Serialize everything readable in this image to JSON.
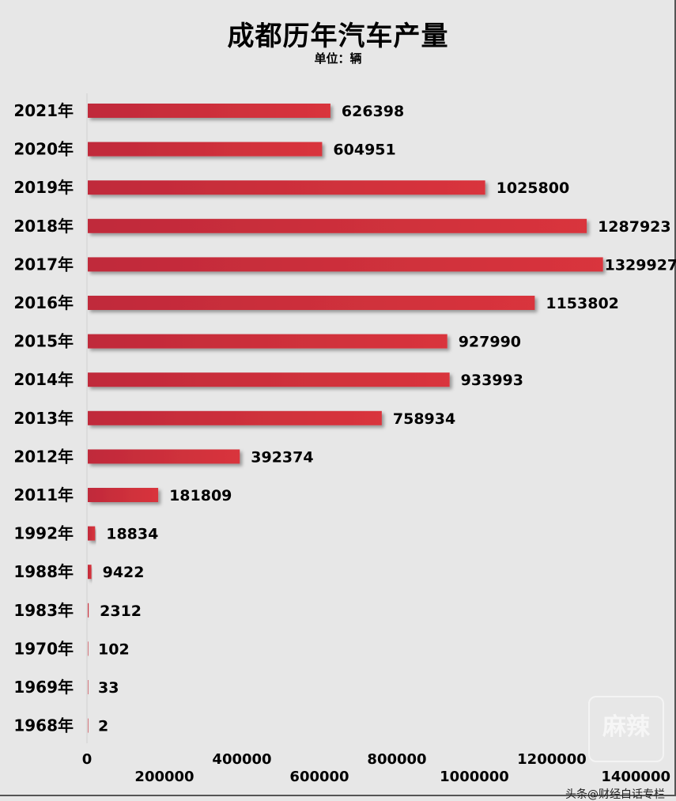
{
  "chart_data": {
    "type": "bar",
    "orientation": "horizontal",
    "title": "成都历年汽车产量",
    "subtitle": "单位：辆",
    "categories": [
      "2021年",
      "2020年",
      "2019年",
      "2018年",
      "2017年",
      "2016年",
      "2015年",
      "2014年",
      "2013年",
      "2012年",
      "2011年",
      "1992年",
      "1988年",
      "1983年",
      "1970年",
      "1969年",
      "1968年"
    ],
    "values": [
      626398,
      604951,
      1025800,
      1287923,
      1329927,
      1153802,
      927990,
      933993,
      758934,
      392374,
      181809,
      18834,
      9422,
      2312,
      102,
      33,
      2
    ],
    "xlim": [
      0,
      1400000
    ],
    "x_ticks": [
      "0",
      "200000",
      "400000",
      "600000",
      "800000",
      "1000000",
      "1200000",
      "1400000"
    ],
    "xlabel": "",
    "ylabel": "",
    "grid": false,
    "bar_color": "#c8303d",
    "data_labels": true
  },
  "watermark": {
    "text": "头条@财经白话专栏",
    "logo": "麻辣"
  }
}
